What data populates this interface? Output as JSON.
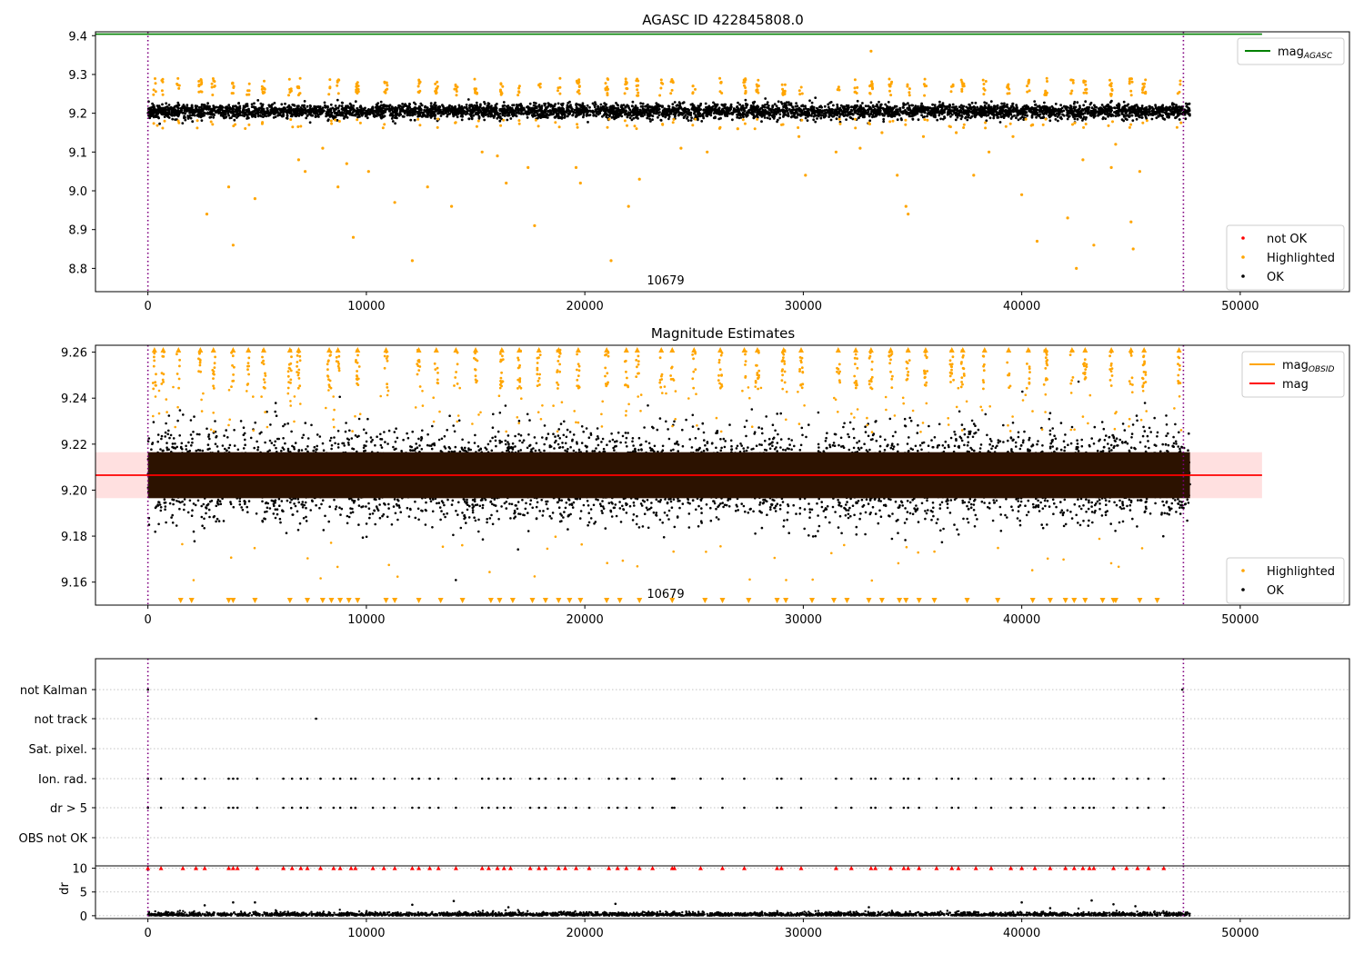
{
  "figure": {
    "title": "AGASC ID 422845808.0",
    "background": "#ffffff"
  },
  "colors": {
    "ok": "#000000",
    "highlighted": "#ffa500",
    "not_ok": "#ff0000",
    "mag_agasc": "#008000",
    "mag_obsid": "#ffa500",
    "mag": "#ff0000",
    "mag_band": "#ffe0e0",
    "obs_boundary": "#800080",
    "grid": "#b0b0b0"
  },
  "chart_data": [
    {
      "type": "scatter",
      "title": "AGASC ID 422845808.0",
      "xlim": [
        -2400,
        55000
      ],
      "ylim": [
        8.74,
        9.41
      ],
      "x_ticks": [
        "0",
        "10000",
        "20000",
        "30000",
        "40000",
        "50000"
      ],
      "y_ticks": [
        "8.8",
        "8.9",
        "9.0",
        "9.1",
        "9.2",
        "9.3",
        "9.4"
      ],
      "obs_boundaries": [
        0,
        47400
      ],
      "obs_label": {
        "text": "10679",
        "x": 23700
      },
      "mag_agasc": 9.404,
      "ok_band": {
        "center": 9.205,
        "half_width": 0.022
      },
      "upper_clusters_x": [
        300,
        700,
        1400,
        2400,
        3000,
        3900,
        4600,
        5300,
        6500,
        6900,
        8300,
        8700,
        9600,
        10900,
        12400,
        13200,
        14100,
        15000,
        16200,
        17000,
        17900,
        18800,
        19700,
        21000,
        21900,
        22400,
        23500,
        24000,
        25000,
        26200,
        27300,
        27900,
        29100,
        29900,
        31600,
        32400,
        33100,
        34000,
        34800,
        35600,
        36800,
        37300,
        38300,
        39400,
        40300,
        41100,
        42300,
        42900,
        44100,
        45000,
        45600,
        47200
      ],
      "highlighted_outliers": [
        [
          2700,
          8.94
        ],
        [
          3700,
          9.01
        ],
        [
          3900,
          8.86
        ],
        [
          4900,
          8.98
        ],
        [
          6900,
          9.08
        ],
        [
          7200,
          9.05
        ],
        [
          8000,
          9.11
        ],
        [
          8700,
          9.01
        ],
        [
          9100,
          9.07
        ],
        [
          9400,
          8.88
        ],
        [
          10100,
          9.05
        ],
        [
          11300,
          8.97
        ],
        [
          12100,
          8.82
        ],
        [
          12800,
          9.01
        ],
        [
          13900,
          8.96
        ],
        [
          15300,
          9.1
        ],
        [
          16000,
          9.09
        ],
        [
          16400,
          9.02
        ],
        [
          17400,
          9.06
        ],
        [
          17700,
          8.91
        ],
        [
          19600,
          9.06
        ],
        [
          19800,
          9.02
        ],
        [
          21200,
          8.82
        ],
        [
          22000,
          8.96
        ],
        [
          22500,
          9.03
        ],
        [
          24400,
          9.11
        ],
        [
          25600,
          9.1
        ],
        [
          27000,
          9.16
        ],
        [
          29800,
          9.14
        ],
        [
          30100,
          9.04
        ],
        [
          31500,
          9.1
        ],
        [
          32600,
          9.11
        ],
        [
          33100,
          9.36
        ],
        [
          33600,
          9.15
        ],
        [
          34300,
          9.04
        ],
        [
          34700,
          8.96
        ],
        [
          34800,
          8.94
        ],
        [
          35500,
          9.14
        ],
        [
          37000,
          9.15
        ],
        [
          37800,
          9.04
        ],
        [
          38500,
          9.1
        ],
        [
          39600,
          9.14
        ],
        [
          40000,
          8.99
        ],
        [
          40500,
          9.17
        ],
        [
          40700,
          8.87
        ],
        [
          42100,
          8.93
        ],
        [
          42500,
          8.8
        ],
        [
          42800,
          9.08
        ],
        [
          43300,
          8.86
        ],
        [
          44100,
          9.06
        ],
        [
          44300,
          9.12
        ],
        [
          45000,
          8.92
        ],
        [
          45100,
          8.85
        ],
        [
          45400,
          9.05
        ]
      ],
      "legends": [
        {
          "position": "top-right",
          "entries": [
            {
              "label": "mag",
              "subscript": "AGASC",
              "marker": "line",
              "color": "#008000"
            }
          ]
        },
        {
          "position": "bottom-right",
          "entries": [
            {
              "label": "not OK",
              "marker": "dot",
              "color": "#ff0000"
            },
            {
              "label": "Highlighted",
              "marker": "dot",
              "color": "#ffa500"
            },
            {
              "label": "OK",
              "marker": "dot",
              "color": "#000000"
            }
          ]
        }
      ]
    },
    {
      "type": "scatter",
      "title": "Magnitude Estimates",
      "xlim": [
        -2400,
        55000
      ],
      "ylim": [
        9.15,
        9.263
      ],
      "x_ticks": [
        "0",
        "10000",
        "20000",
        "30000",
        "40000",
        "50000"
      ],
      "y_ticks": [
        "9.16",
        "9.18",
        "9.20",
        "9.22",
        "9.24",
        "9.26"
      ],
      "obs_boundaries": [
        0,
        47400
      ],
      "obs_label": {
        "text": "10679",
        "x": 23700
      },
      "mag": 9.2065,
      "mag_band": [
        9.1965,
        9.2165
      ],
      "dense_band": [
        9.1965,
        9.2165
      ],
      "ok_spread": [
        9.176,
        9.236
      ],
      "clipped_top_x": [
        300,
        700,
        1400,
        2400,
        3000,
        3900,
        4600,
        5300,
        6500,
        6900,
        8300,
        8700,
        9600,
        10900,
        12400,
        13200,
        14100,
        15000,
        16200,
        17000,
        17900,
        18800,
        19700,
        21000,
        21900,
        22400,
        23500,
        24000,
        25000,
        26200,
        27300,
        27900,
        29100,
        29900,
        31600,
        32400,
        33100,
        34000,
        34800,
        35600,
        36800,
        37300,
        38300,
        39400,
        40300,
        41100,
        42300,
        42900,
        44100,
        45000,
        45600,
        47200
      ],
      "clipped_bottom_x": [
        1500,
        2000,
        3700,
        3900,
        4900,
        6500,
        7300,
        8000,
        8400,
        8800,
        9200,
        9600,
        10900,
        11300,
        12400,
        13400,
        14400,
        15700,
        16100,
        16700,
        17600,
        18200,
        18800,
        19300,
        19800,
        21000,
        21600,
        22500,
        24000,
        25500,
        26300,
        27500,
        28800,
        29200,
        30400,
        31400,
        32000,
        33000,
        33600,
        34400,
        34700,
        35300,
        36000,
        37500,
        38900,
        40500,
        41300,
        42000,
        42400,
        42900,
        43700,
        44200,
        44300,
        45400,
        46200
      ],
      "legends": [
        {
          "position": "top-right",
          "entries": [
            {
              "label": "mag",
              "subscript": "OBSID",
              "marker": "line",
              "color": "#ffa500"
            },
            {
              "label": "mag",
              "marker": "line",
              "color": "#ff0000"
            }
          ]
        },
        {
          "position": "bottom-right",
          "entries": [
            {
              "label": "Highlighted",
              "marker": "dot",
              "color": "#ffa500"
            },
            {
              "label": "OK",
              "marker": "dot",
              "color": "#000000"
            }
          ]
        }
      ]
    },
    {
      "type": "scatter",
      "title": "",
      "xlim": [
        -2400,
        55000
      ],
      "flag_rows": [
        "not Kalman",
        "not track",
        "Sat. pixel.",
        "Ion. rad.",
        "dr > 5",
        "OBS not OK"
      ],
      "obs_boundaries": [
        0,
        47400
      ],
      "flag_points": {
        "not Kalman": [
          0,
          47350
        ],
        "not track": [
          7700
        ],
        "Sat. pixel.": [],
        "Ion. rad.": [
          0,
          600,
          1600,
          2200,
          2600,
          3700,
          3900,
          4100,
          5000,
          6200,
          6600,
          7000,
          7300,
          7900,
          8500,
          8800,
          9300,
          9500,
          10300,
          10800,
          11300,
          12100,
          12400,
          12900,
          13300,
          14100,
          15300,
          15600,
          16000,
          16300,
          16600,
          17500,
          17900,
          18200,
          18800,
          19100,
          19600,
          20200,
          21100,
          21500,
          21900,
          22500,
          23100,
          24000,
          24100,
          25300,
          26300,
          27300,
          28800,
          29000,
          29900,
          31500,
          32200,
          33100,
          33300,
          34000,
          34600,
          34800,
          35300,
          36100,
          36800,
          37100,
          37900,
          38600,
          39500,
          40000,
          40600,
          41300,
          42000,
          42400,
          42800,
          43100,
          43300,
          44200,
          44800,
          45300,
          45800,
          46500
        ],
        "dr > 5": [
          0,
          600,
          1600,
          2200,
          2600,
          3700,
          3900,
          4100,
          5000,
          6200,
          6600,
          7000,
          7300,
          7900,
          8500,
          8800,
          9300,
          9500,
          10300,
          10800,
          11300,
          12100,
          12400,
          12900,
          13300,
          14100,
          15300,
          15600,
          16000,
          16300,
          16600,
          17500,
          17900,
          18200,
          18800,
          19100,
          19600,
          20200,
          21100,
          21500,
          21900,
          22500,
          23100,
          24000,
          24100,
          25300,
          26300,
          27300,
          28800,
          29000,
          29900,
          31500,
          32200,
          33100,
          33300,
          34000,
          34600,
          34800,
          35300,
          36100,
          36800,
          37100,
          37900,
          38600,
          39500,
          40000,
          40600,
          41300,
          42000,
          42400,
          42800,
          43100,
          43300,
          44200,
          44800,
          45300,
          45800,
          46500
        ],
        "OBS not OK": []
      }
    },
    {
      "type": "scatter",
      "title": "",
      "xlim": [
        -2400,
        55000
      ],
      "ylim": [
        -0.6,
        10.5
      ],
      "ylabel": "dr",
      "x_ticks": [
        "0",
        "10000",
        "20000",
        "30000",
        "40000",
        "50000"
      ],
      "y_ticks": [
        "0",
        "5",
        "10"
      ],
      "obs_boundaries": [
        0,
        47400
      ],
      "clip_value": 10,
      "clipped_x": [
        0,
        600,
        1600,
        2200,
        2600,
        3700,
        3900,
        4100,
        5000,
        6200,
        6600,
        7000,
        7300,
        7900,
        8500,
        8800,
        9300,
        9500,
        10300,
        10800,
        11300,
        12100,
        12400,
        12900,
        13300,
        14100,
        15300,
        15600,
        16000,
        16300,
        16600,
        17500,
        17900,
        18200,
        18800,
        19100,
        19600,
        20200,
        21100,
        21500,
        21900,
        22500,
        23100,
        24000,
        24100,
        25300,
        26300,
        27300,
        28800,
        29000,
        29900,
        31500,
        32200,
        33100,
        33300,
        34000,
        34600,
        34800,
        35300,
        36100,
        36800,
        37100,
        37900,
        38600,
        39500,
        40000,
        40600,
        41300,
        42000,
        42400,
        42800,
        43100,
        43300,
        44200,
        44800,
        45300,
        45800,
        46500
      ],
      "dr_outliers": [
        [
          2600,
          2.2
        ],
        [
          3900,
          2.8
        ],
        [
          4900,
          2.8
        ],
        [
          12100,
          2.3
        ],
        [
          14000,
          3.1
        ],
        [
          16500,
          1.8
        ],
        [
          21400,
          2.5
        ],
        [
          33000,
          1.8
        ],
        [
          40000,
          2.8
        ],
        [
          41300,
          1.6
        ],
        [
          43200,
          3.2
        ],
        [
          44200,
          2.4
        ],
        [
          45200,
          2.0
        ]
      ]
    }
  ]
}
